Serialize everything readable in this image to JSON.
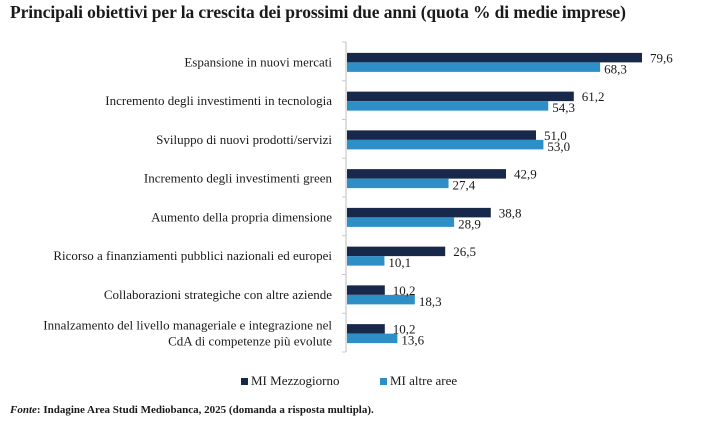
{
  "chart_data": {
    "type": "bar",
    "orientation": "horizontal",
    "title": "Principali obiettivi per la crescita dei prossimi due anni (quota % di medie imprese)",
    "xlabel": "",
    "ylabel": "",
    "xlim": [
      0,
      80
    ],
    "grid": false,
    "legend_position": "bottom",
    "categories": [
      "Espansione in nuovi mercati",
      "Incremento degli investimenti in tecnologia",
      "Sviluppo di nuovi prodotti/servizi",
      "Incremento degli investimenti green",
      "Aumento della propria dimensione",
      "Ricorso a finanziamenti pubblici nazionali ed europei",
      "Collaborazioni strategiche con altre aziende",
      "Innalzamento del livello manageriale e integrazione nel CdA di competenze più evolute"
    ],
    "category_lines": [
      [
        "Espansione in nuovi mercati"
      ],
      [
        "Incremento degli investimenti in tecnologia"
      ],
      [
        "Sviluppo di nuovi prodotti/servizi"
      ],
      [
        "Incremento degli investimenti green"
      ],
      [
        "Aumento della propria dimensione"
      ],
      [
        "Ricorso a finanziamenti pubblici nazionali ed europei"
      ],
      [
        "Collaborazioni strategiche con altre aziende"
      ],
      [
        "Innalzamento del livello manageriale e integrazione nel",
        "CdA di competenze più evolute"
      ]
    ],
    "series": [
      {
        "name": "MI Mezzogiorno",
        "color": "#17284a",
        "values": [
          79.6,
          61.2,
          51.0,
          42.9,
          38.8,
          26.5,
          10.2,
          10.2
        ],
        "labels": [
          "79,6",
          "61,2",
          "51,0",
          "42,9",
          "38,8",
          "26,5",
          "10,2",
          "10,2"
        ]
      },
      {
        "name": "MI altre aree",
        "color": "#2e8fc6",
        "values": [
          68.3,
          54.3,
          53.0,
          27.4,
          28.9,
          10.1,
          18.3,
          13.6
        ],
        "labels": [
          "68,3",
          "54,3",
          "53,0",
          "27,4",
          "28,9",
          "10,1",
          "18,3",
          "13,6"
        ]
      }
    ]
  },
  "legend": {
    "items": [
      {
        "label": "MI Mezzogiorno",
        "color": "#17284a"
      },
      {
        "label": "MI altre aree",
        "color": "#2e8fc6"
      }
    ]
  },
  "source": {
    "prefix": "Fonte",
    "text": ": Indagine Area Studi Mediobanca, 2025 (domanda a risposta multipla)."
  }
}
